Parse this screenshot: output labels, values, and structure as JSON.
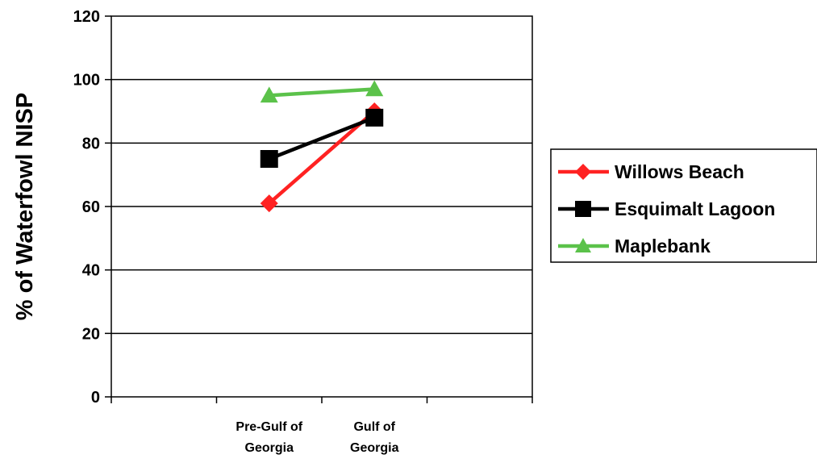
{
  "chart_data": {
    "type": "line",
    "title": "",
    "xlabel": "",
    "ylabel": "% of Waterfowl NISP",
    "ylim": [
      0,
      120
    ],
    "ytick_step": 20,
    "y_ticks": [
      "0",
      "20",
      "40",
      "60",
      "80",
      "100",
      "120"
    ],
    "grid": true,
    "legend_position": "right",
    "categories": [
      [
        "Pre-Gulf of",
        "Georgia"
      ],
      [
        "Gulf of",
        "Georgia"
      ]
    ],
    "series": [
      {
        "name": "Willows Beach",
        "color": "#ff2222",
        "marker": "diamond",
        "values": [
          61,
          90
        ]
      },
      {
        "name": "Esquimalt Lagoon",
        "color": "#000000",
        "marker": "square",
        "values": [
          75,
          88
        ]
      },
      {
        "name": "Maplebank",
        "color": "#5bc24a",
        "marker": "triangle",
        "values": [
          95,
          97
        ]
      }
    ]
  }
}
